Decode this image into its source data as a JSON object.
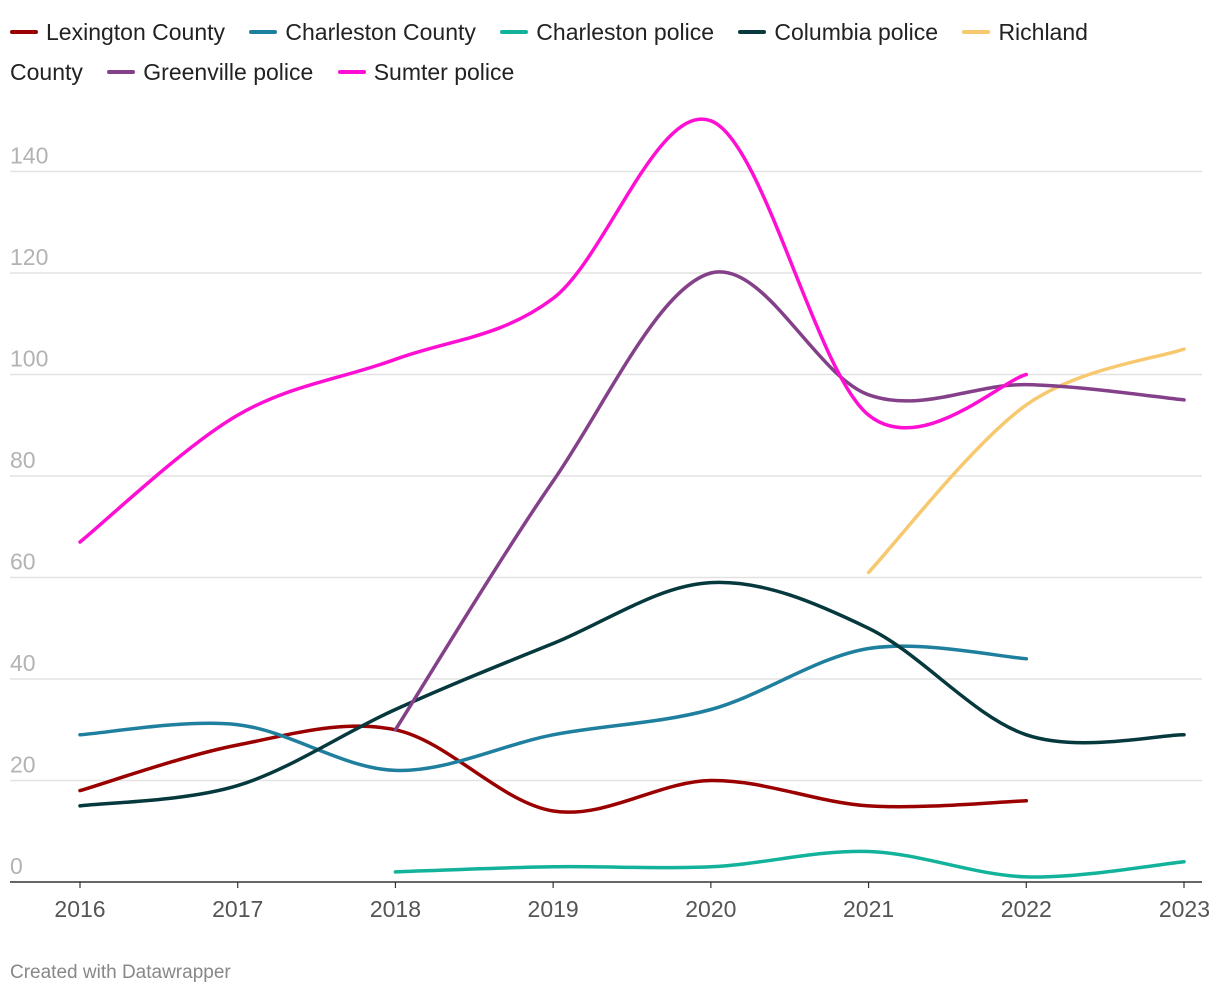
{
  "chart_data": {
    "type": "line",
    "title": "",
    "xlabel": "",
    "ylabel": "",
    "x": [
      2016,
      2017,
      2018,
      2019,
      2020,
      2021,
      2022,
      2023
    ],
    "x_tick_labels": [
      "2016",
      "2017",
      "2018",
      "2019",
      "2020",
      "2021",
      "2022",
      "2023"
    ],
    "y_ticks": [
      0,
      20,
      40,
      60,
      80,
      100,
      120,
      140
    ],
    "y_tick_labels": [
      "0",
      "20",
      "40",
      "60",
      "80",
      "100",
      "120",
      "140"
    ],
    "ylim": [
      0,
      140
    ],
    "legend_position": "top",
    "grid": true,
    "series": [
      {
        "name": "Lexington County",
        "color": "#9b0000",
        "values": [
          18,
          27,
          30,
          14,
          20,
          15,
          16,
          null
        ]
      },
      {
        "name": "Charleston County",
        "color": "#1f7f9e",
        "values": [
          29,
          31,
          22,
          29,
          34,
          46,
          44,
          null
        ]
      },
      {
        "name": "Charleston police",
        "color": "#12b39a",
        "values": [
          null,
          null,
          2,
          3,
          3,
          6,
          1,
          4
        ]
      },
      {
        "name": "Columbia police",
        "color": "#06393d",
        "values": [
          15,
          19,
          34,
          47,
          59,
          50,
          29,
          29
        ]
      },
      {
        "name": "Richland County",
        "color": "#f7c86e",
        "values": [
          null,
          null,
          null,
          null,
          null,
          61,
          94,
          105
        ]
      },
      {
        "name": "Greenville police",
        "color": "#844089",
        "values": [
          null,
          null,
          30,
          79,
          120,
          96,
          98,
          95
        ]
      },
      {
        "name": "Sumter police",
        "color": "#ff0fd3",
        "values": [
          67,
          92,
          103,
          115,
          150,
          92,
          100,
          null
        ]
      }
    ]
  },
  "legend": {
    "items": [
      {
        "label": "Lexington County",
        "color": "#9b0000"
      },
      {
        "label": "Charleston County",
        "color": "#1f7f9e"
      },
      {
        "label": "Charleston police",
        "color": "#12b39a"
      },
      {
        "label": "Columbia police",
        "color": "#06393d"
      },
      {
        "label": "Richland County",
        "color": "#f7c86e"
      },
      {
        "label": "Greenville police",
        "color": "#844089"
      },
      {
        "label": "Sumter police",
        "color": "#ff0fd3"
      }
    ]
  },
  "footer": {
    "credit": "Created with Datawrapper"
  }
}
